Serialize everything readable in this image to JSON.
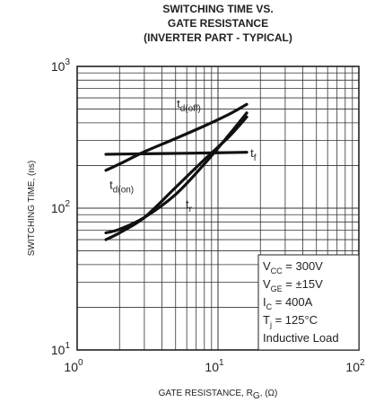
{
  "chart_data": {
    "type": "line",
    "title": [
      "SWITCHING TIME VS.",
      "GATE RESISTANCE",
      "(INVERTER PART - TYPICAL)"
    ],
    "xlabel": {
      "main": "GATE RESISTANCE, R",
      "sub": "G",
      "unit": ", (Ω)"
    },
    "ylabel": "SWITCHING TIME, (ns)",
    "x_scale": "log",
    "y_scale": "log",
    "xlim": [
      1,
      100
    ],
    "ylim": [
      10,
      1000
    ],
    "x_ticks": [
      {
        "base": "10",
        "exp": "0",
        "value": 1
      },
      {
        "base": "10",
        "exp": "1",
        "value": 10
      },
      {
        "base": "10",
        "exp": "2",
        "value": 100
      }
    ],
    "y_ticks": [
      {
        "base": "10",
        "exp": "1",
        "value": 10
      },
      {
        "base": "10",
        "exp": "2",
        "value": 100
      },
      {
        "base": "10",
        "exp": "3",
        "value": 1000
      }
    ],
    "grid": true,
    "series": [
      {
        "name": "t_d(off)",
        "label_main": "t",
        "label_sub": "d(off)",
        "label_at": {
          "x": 5.1,
          "y": 510
        },
        "points": [
          [
            1.6,
            185
          ],
          [
            2.0,
            205
          ],
          [
            3.0,
            250
          ],
          [
            5.0,
            310
          ],
          [
            8.0,
            380
          ],
          [
            12.0,
            460
          ],
          [
            16.0,
            540
          ]
        ]
      },
      {
        "name": "t_f",
        "label_main": "t",
        "label_sub": "f",
        "label_at": {
          "x": 17.0,
          "y": 230
        },
        "points": [
          [
            1.6,
            240
          ],
          [
            3.0,
            242
          ],
          [
            6.0,
            244
          ],
          [
            10.0,
            246
          ],
          [
            16.0,
            248
          ]
        ]
      },
      {
        "name": "t_d(on)",
        "label_main": "t",
        "label_sub": "d(on)",
        "label_at": {
          "x": 1.7,
          "y": 137
        },
        "points": [
          [
            1.6,
            67
          ],
          [
            2.0,
            71
          ],
          [
            3.0,
            86
          ],
          [
            5.0,
            125
          ],
          [
            8.0,
            205
          ],
          [
            12.0,
            330
          ],
          [
            16.0,
            470
          ]
        ]
      },
      {
        "name": "t_r",
        "label_main": "t",
        "label_sub": "r",
        "label_at": {
          "x": 5.9,
          "y": 100
        },
        "points": [
          [
            1.6,
            60
          ],
          [
            2.0,
            67
          ],
          [
            3.0,
            86
          ],
          [
            5.0,
            140
          ],
          [
            8.0,
            220
          ],
          [
            12.0,
            320
          ],
          [
            16.0,
            440
          ]
        ]
      }
    ],
    "annotations": [
      {
        "main": "V",
        "sub": "CC",
        "rest": " = 300V"
      },
      {
        "main": "V",
        "sub": "GE",
        "rest": " = ±15V"
      },
      {
        "main": "I",
        "sub": "C",
        "rest": " = 400A"
      },
      {
        "main": "T",
        "sub": "j",
        "rest": " = 125°C"
      },
      {
        "main": "Inductive Load",
        "sub": "",
        "rest": ""
      }
    ],
    "annotation_position": "bottom-right"
  }
}
